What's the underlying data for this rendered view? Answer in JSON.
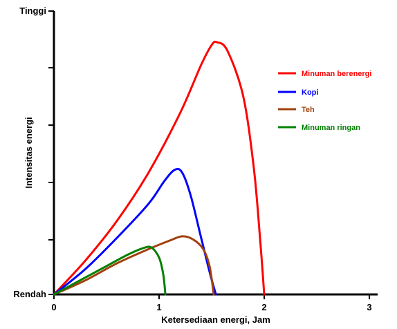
{
  "chart_data": {
    "type": "line",
    "xlabel": "Ketersediaan energi, Jam",
    "ylabel": "Intensitas energi",
    "xlim": [
      0,
      3
    ],
    "ylim": [
      0,
      10
    ],
    "x_ticks": [
      "0",
      "1",
      "2",
      "3"
    ],
    "y_ticks": [
      "Rendah",
      "Tinggi"
    ],
    "legend_position": "right",
    "grid": false,
    "series": [
      {
        "name": "Minuman berenergi",
        "color": "#ff0000",
        "points": [
          [
            0,
            0
          ],
          [
            0.3,
            1.2
          ],
          [
            0.6,
            2.6
          ],
          [
            0.9,
            4.3
          ],
          [
            1.2,
            6.4
          ],
          [
            1.4,
            8.1
          ],
          [
            1.5,
            8.8
          ],
          [
            1.55,
            8.9
          ],
          [
            1.65,
            8.6
          ],
          [
            1.8,
            7.0
          ],
          [
            1.9,
            4.5
          ],
          [
            1.96,
            2.0
          ],
          [
            2.0,
            0
          ]
        ]
      },
      {
        "name": "Kopi",
        "color": "#0000ff",
        "points": [
          [
            0,
            0
          ],
          [
            0.3,
            0.9
          ],
          [
            0.6,
            2.0
          ],
          [
            0.9,
            3.2
          ],
          [
            1.05,
            4.0
          ],
          [
            1.15,
            4.4
          ],
          [
            1.22,
            4.3
          ],
          [
            1.3,
            3.5
          ],
          [
            1.4,
            2.0
          ],
          [
            1.48,
            0.8
          ],
          [
            1.54,
            0
          ]
        ]
      },
      {
        "name": "Teh",
        "color": "#a0410d",
        "points": [
          [
            0,
            0
          ],
          [
            0.3,
            0.5
          ],
          [
            0.6,
            1.1
          ],
          [
            0.9,
            1.6
          ],
          [
            1.1,
            1.9
          ],
          [
            1.22,
            2.05
          ],
          [
            1.32,
            1.95
          ],
          [
            1.42,
            1.6
          ],
          [
            1.48,
            1.0
          ],
          [
            1.52,
            0
          ]
        ]
      },
      {
        "name": "Minuman ringan",
        "color": "#008000",
        "points": [
          [
            0,
            0
          ],
          [
            0.2,
            0.4
          ],
          [
            0.45,
            0.9
          ],
          [
            0.7,
            1.4
          ],
          [
            0.86,
            1.65
          ],
          [
            0.93,
            1.65
          ],
          [
            1.0,
            1.3
          ],
          [
            1.04,
            0.7
          ],
          [
            1.06,
            0
          ]
        ]
      }
    ]
  }
}
